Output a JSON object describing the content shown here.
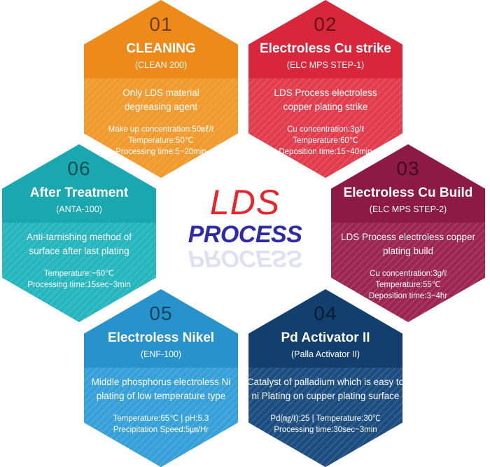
{
  "center": {
    "title": "LDS",
    "subtitle": "PROCESS"
  },
  "steps": [
    {
      "number": "01",
      "title": "CLEANING",
      "code": "(CLEAN 200)",
      "description": [
        "Only LDS material",
        "degreasing agent"
      ],
      "specs": [
        "Make up concentration:50㎖/ℓ",
        "Temperature:50℃",
        "Processing time:5~20min"
      ],
      "color_top": "#ee8a1a",
      "color_bottom": "#f19a2e"
    },
    {
      "number": "02",
      "title": "Electroless Cu strike",
      "code": "(ELC MPS STEP-1)",
      "description": [
        "LDS Process electroless",
        "copper plating strike"
      ],
      "specs": [
        "Cu concentration:3g/ℓ",
        "Temperature:60℃",
        "Deposition time:15~40min"
      ],
      "color_top": "#d8273a",
      "color_bottom": "#e23d4d"
    },
    {
      "number": "03",
      "title": "Electroless Cu Build",
      "code": "(ELC MPS STEP-2)",
      "description": [
        "LDS Process electroless copper",
        "plating build"
      ],
      "specs": [
        "Cu concentration:3g/ℓ",
        "Temperature:55℃",
        "Deposition time:3~4hr"
      ],
      "color_top": "#8c1a44",
      "color_bottom": "#9c2552"
    },
    {
      "number": "04",
      "title": "Pd Activator II",
      "code": "(Palla Activator II)",
      "description": [
        "Catalyst of palladium which is easy to",
        "ni Plating on cupper plating surface"
      ],
      "specs": [
        "Pd(㎎/ℓ):25 | Temperature:30℃",
        "Processing time:30sec~3min"
      ],
      "color_top": "#133f6e",
      "color_bottom": "#1d4d80"
    },
    {
      "number": "05",
      "title": "Electroless Nikel",
      "code": "(ENF-100)",
      "description": [
        "Middle phosphorus electroless Ni",
        "plating of low temperature type"
      ],
      "specs": [
        "Temperature:65℃ | pH:5.3",
        "Precipitation Speed:5㎛/Hr"
      ],
      "color_top": "#2792cc",
      "color_bottom": "#36a0d8"
    },
    {
      "number": "06",
      "title": "After Treatment",
      "code": "(ANTA-100)",
      "description": [
        "Anti-tarnishing method of",
        "surface after last plating"
      ],
      "specs": [
        "Temperature:~60℃",
        "Processing time:15sec~3min"
      ],
      "color_top": "#1aa8b0",
      "color_bottom": "#26b6bd"
    }
  ]
}
